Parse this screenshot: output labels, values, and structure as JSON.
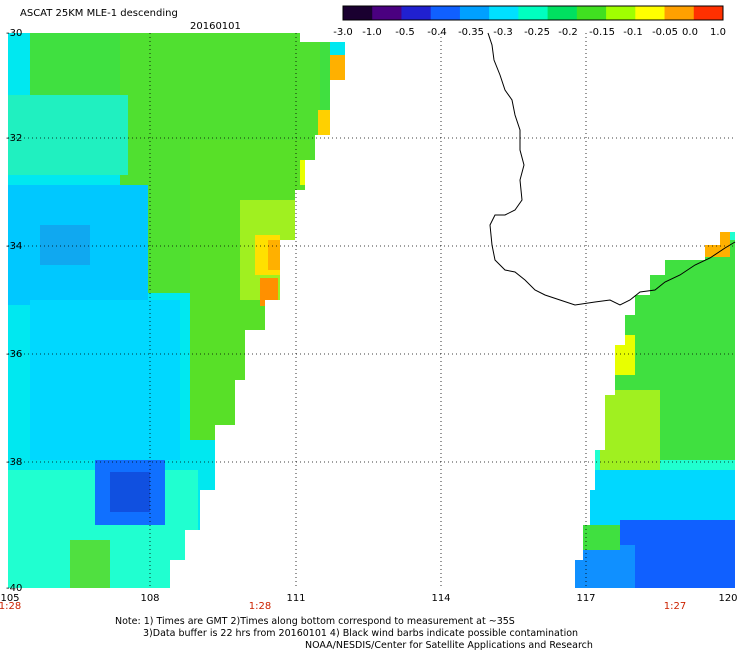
{
  "header": {
    "title": "ASCAT 25KM MLE-1 descending",
    "date": "20160101"
  },
  "colorbar": {
    "colors": [
      "#1a0030",
      "#4a0080",
      "#2020d0",
      "#1060ff",
      "#00a0ff",
      "#00e0ff",
      "#00ffc0",
      "#00e060",
      "#40e020",
      "#a0ff00",
      "#ffff00",
      "#ffa000",
      "#ff3000"
    ],
    "labels": [
      "-3.0",
      "-1.0",
      "-0.5",
      "-0.4",
      "-0.35",
      "-0.3",
      "-0.25",
      "-0.2",
      "-0.15",
      "-0.1",
      "-0.05",
      "0.0",
      "1.0"
    ]
  },
  "map": {
    "lat_labels": [
      "-30",
      "-32",
      "-34",
      "-36",
      "-38",
      "-40"
    ],
    "lon_labels": [
      "105",
      "108",
      "111",
      "114",
      "117",
      "120"
    ],
    "lon_range": [
      105,
      120
    ],
    "lat_range": [
      -30,
      -40
    ],
    "swath_time_labels": [
      "1:28",
      "1:28",
      "1:27"
    ]
  },
  "footer": {
    "note_line1": "Note: 1) Times are GMT 2)Times along bottom correspond to measurement at ~35S",
    "note_line2": "3)Data buffer is 22 hrs from 20160101 4) Black wind barbs indicate possible contamination",
    "credit": "NOAA/NESDIS/Center for Satellite Applications and Research"
  }
}
